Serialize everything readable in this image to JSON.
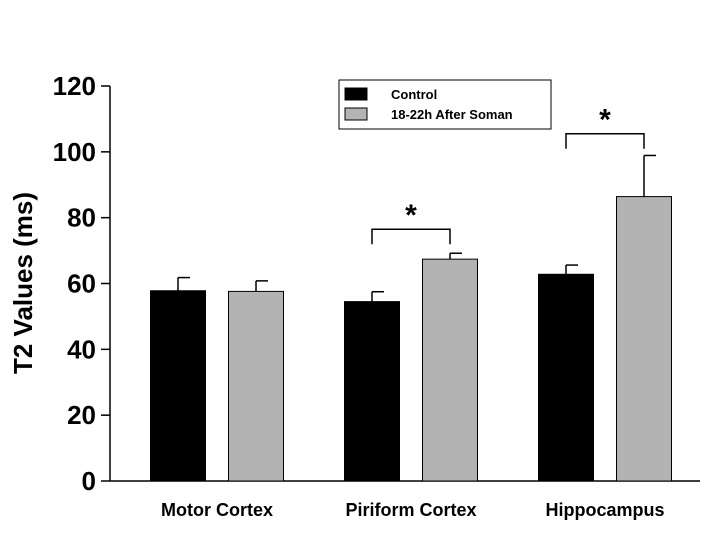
{
  "chart_data": {
    "type": "bar",
    "title": "",
    "xlabel": "",
    "ylabel": "T2 Values (ms)",
    "ylim": [
      0,
      120
    ],
    "yticks": [
      0,
      20,
      40,
      60,
      80,
      100,
      120
    ],
    "grid": false,
    "legend_position": "top-center",
    "categories": [
      "Motor Cortex",
      "Piriform Cortex",
      "Hippocampus"
    ],
    "series": [
      {
        "name": "Control",
        "color": "#000000",
        "values": [
          57.8,
          54.5,
          62.8
        ],
        "errors": [
          4.0,
          3.0,
          2.8
        ]
      },
      {
        "name": "18-22h After Soman",
        "color": "#b3b3b3",
        "values": [
          57.6,
          67.4,
          86.4
        ],
        "errors": [
          3.2,
          1.8,
          12.5
        ]
      }
    ],
    "significance": [
      {
        "category_index": 1,
        "label": "*",
        "bracket_y": 76.5
      },
      {
        "category_index": 2,
        "label": "*",
        "bracket_y": 105.5
      }
    ]
  }
}
